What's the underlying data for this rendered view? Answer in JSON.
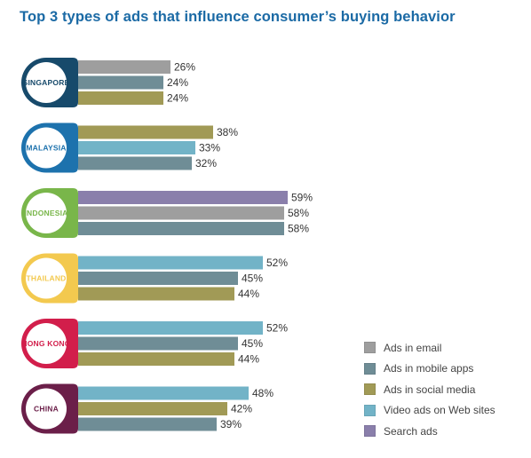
{
  "chart_data": {
    "type": "bar",
    "orientation": "horizontal",
    "title": "Top 3 types of ads that influence consumer’s buying behavior",
    "value_suffix": "%",
    "legend_position": "bottom-right",
    "legend": [
      {
        "key": "email",
        "label": "Ads in email",
        "color": "#9e9e9e"
      },
      {
        "key": "mobile",
        "label": "Ads in mobile apps",
        "color": "#6f8d96"
      },
      {
        "key": "social",
        "label": "Ads in social media",
        "color": "#a19a56"
      },
      {
        "key": "web",
        "label": "Video ads on Web sites",
        "color": "#72b3c7"
      },
      {
        "key": "search",
        "label": "Search ads",
        "color": "#8a7fab"
      }
    ],
    "groups": [
      {
        "country": "SINGAPORE",
        "color": "#174a6b",
        "bars": [
          {
            "type": "email",
            "value": 26
          },
          {
            "type": "mobile",
            "value": 24
          },
          {
            "type": "social",
            "value": 24
          }
        ]
      },
      {
        "country": "MALAYSIA",
        "color": "#1d72ad",
        "bars": [
          {
            "type": "social",
            "value": 38
          },
          {
            "type": "web",
            "value": 33
          },
          {
            "type": "mobile",
            "value": 32
          }
        ]
      },
      {
        "country": "INDONESIA",
        "color": "#79b64a",
        "bars": [
          {
            "type": "search",
            "value": 59
          },
          {
            "type": "email",
            "value": 58
          },
          {
            "type": "mobile",
            "value": 58
          }
        ]
      },
      {
        "country": "THAILAND",
        "color": "#f3c94f",
        "bars": [
          {
            "type": "web",
            "value": 52
          },
          {
            "type": "mobile",
            "value": 45
          },
          {
            "type": "social",
            "value": 44
          }
        ]
      },
      {
        "country": "HONG KONG",
        "color": "#d21e4b",
        "bars": [
          {
            "type": "web",
            "value": 52
          },
          {
            "type": "mobile",
            "value": 45
          },
          {
            "type": "social",
            "value": 44
          }
        ]
      },
      {
        "country": "CHINA",
        "color": "#6b1f49",
        "bars": [
          {
            "type": "web",
            "value": 48
          },
          {
            "type": "social",
            "value": 42
          },
          {
            "type": "mobile",
            "value": 39
          }
        ]
      }
    ]
  }
}
